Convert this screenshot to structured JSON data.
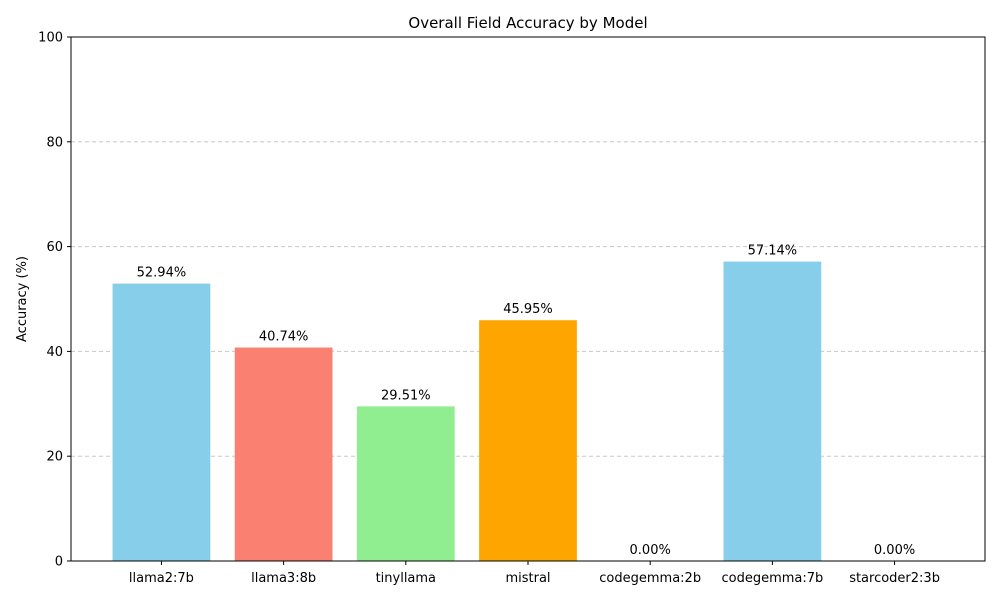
{
  "chart_data": {
    "type": "bar",
    "title": "Overall Field Accuracy by Model",
    "xlabel": "",
    "ylabel": "Accuracy (%)",
    "ylim": [
      0,
      100
    ],
    "yticks": [
      0,
      20,
      40,
      60,
      80,
      100
    ],
    "grid": "y-dashed",
    "categories": [
      "llama2:7b",
      "llama3:8b",
      "tinyllama",
      "mistral",
      "codegemma:2b",
      "codegemma:7b",
      "starcoder2:3b"
    ],
    "values": [
      52.94,
      40.74,
      29.51,
      45.95,
      0.0,
      57.14,
      0.0
    ],
    "data_labels": [
      "52.94%",
      "40.74%",
      "29.51%",
      "45.95%",
      "0.00%",
      "57.14%",
      "0.00%"
    ],
    "colors": [
      "#87ceeb",
      "#fa8072",
      "#90ee90",
      "#ffa500",
      "#87ceeb",
      "#87ceeb",
      "#87ceeb"
    ]
  }
}
